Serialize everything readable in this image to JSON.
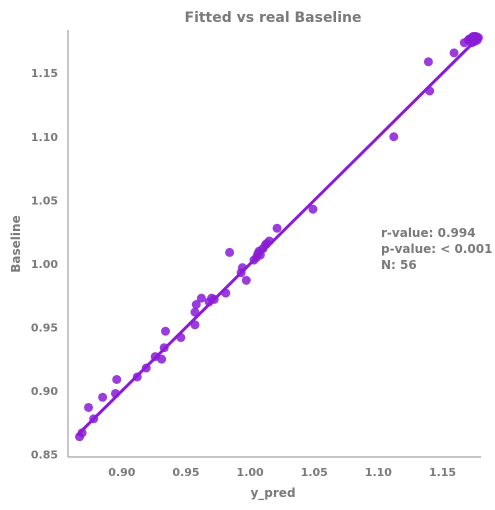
{
  "chart_data": {
    "type": "scatter",
    "title": "Fitted vs real Baseline",
    "xlabel": "y_pred",
    "ylabel": "Baseline",
    "xlim": [
      0.858,
      1.18
    ],
    "ylim": [
      0.848,
      1.184
    ],
    "xticks": [
      "0.90",
      "0.95",
      "1.00",
      "1.05",
      "1.10",
      "1.15"
    ],
    "yticks": [
      "0.85",
      "0.90",
      "0.95",
      "1.00",
      "1.05",
      "1.10",
      "1.15"
    ],
    "grid": false,
    "color": "#8a1bd6",
    "regression_line": {
      "x": [
        0.866,
        1.178
      ],
      "y": [
        0.866,
        1.178
      ]
    },
    "stats": [
      "r-value: 0.994",
      "p-value: < 0.001",
      "N: 56"
    ],
    "points": [
      {
        "x": 0.867,
        "y": 0.864
      },
      {
        "x": 0.869,
        "y": 0.867
      },
      {
        "x": 0.874,
        "y": 0.887
      },
      {
        "x": 0.878,
        "y": 0.878
      },
      {
        "x": 0.885,
        "y": 0.895
      },
      {
        "x": 0.895,
        "y": 0.898
      },
      {
        "x": 0.896,
        "y": 0.909
      },
      {
        "x": 0.912,
        "y": 0.911
      },
      {
        "x": 0.919,
        "y": 0.918
      },
      {
        "x": 0.926,
        "y": 0.927
      },
      {
        "x": 0.931,
        "y": 0.925
      },
      {
        "x": 0.933,
        "y": 0.934
      },
      {
        "x": 0.934,
        "y": 0.947
      },
      {
        "x": 0.946,
        "y": 0.942
      },
      {
        "x": 0.957,
        "y": 0.952
      },
      {
        "x": 0.958,
        "y": 0.968
      },
      {
        "x": 0.957,
        "y": 0.962
      },
      {
        "x": 0.962,
        "y": 0.973
      },
      {
        "x": 0.968,
        "y": 0.97
      },
      {
        "x": 0.97,
        "y": 0.973
      },
      {
        "x": 0.972,
        "y": 0.972
      },
      {
        "x": 0.981,
        "y": 0.977
      },
      {
        "x": 0.984,
        "y": 1.009
      },
      {
        "x": 0.993,
        "y": 0.993
      },
      {
        "x": 0.994,
        "y": 0.997
      },
      {
        "x": 0.997,
        "y": 0.987
      },
      {
        "x": 1.003,
        "y": 1.003
      },
      {
        "x": 1.005,
        "y": 1.005
      },
      {
        "x": 1.006,
        "y": 1.008
      },
      {
        "x": 1.007,
        "y": 1.01
      },
      {
        "x": 1.008,
        "y": 1.007
      },
      {
        "x": 1.01,
        "y": 1.012
      },
      {
        "x": 1.012,
        "y": 1.015
      },
      {
        "x": 1.013,
        "y": 1.016
      },
      {
        "x": 1.015,
        "y": 1.018
      },
      {
        "x": 1.021,
        "y": 1.028
      },
      {
        "x": 1.049,
        "y": 1.043
      },
      {
        "x": 1.112,
        "y": 1.1
      },
      {
        "x": 1.139,
        "y": 1.159
      },
      {
        "x": 1.14,
        "y": 1.136
      },
      {
        "x": 1.159,
        "y": 1.166
      },
      {
        "x": 1.167,
        "y": 1.174
      },
      {
        "x": 1.17,
        "y": 1.176
      },
      {
        "x": 1.171,
        "y": 1.177
      },
      {
        "x": 1.172,
        "y": 1.176
      },
      {
        "x": 1.173,
        "y": 1.178
      },
      {
        "x": 1.174,
        "y": 1.177
      },
      {
        "x": 1.175,
        "y": 1.178
      },
      {
        "x": 1.176,
        "y": 1.177
      },
      {
        "x": 1.176,
        "y": 1.179
      },
      {
        "x": 1.177,
        "y": 1.178
      },
      {
        "x": 1.177,
        "y": 1.176
      },
      {
        "x": 1.178,
        "y": 1.178
      },
      {
        "x": 1.173,
        "y": 1.174
      },
      {
        "x": 1.175,
        "y": 1.175
      },
      {
        "x": 1.174,
        "y": 1.179
      }
    ]
  }
}
